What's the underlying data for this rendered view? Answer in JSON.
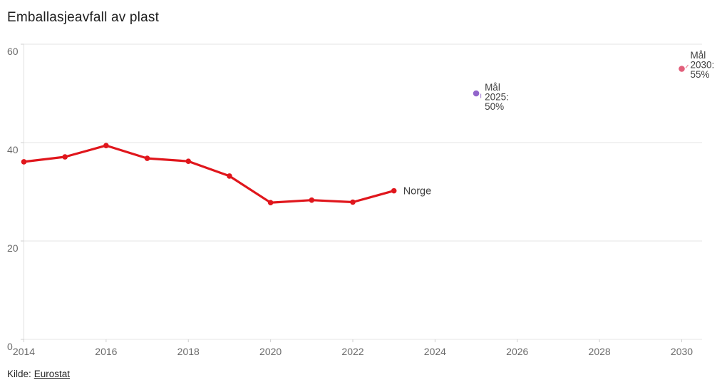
{
  "title": "Emballasjeavfall av plast",
  "source": {
    "prefix": "Kilde:",
    "link": "Eurostat"
  },
  "colors": {
    "line": "#e0161c",
    "target_2025": "#9265cb",
    "target_2030": "#e25f7b",
    "grid": "#e5e5e5",
    "axis": "#e0e0e0",
    "tick": "#cfcfcf",
    "axis_text": "#6b6b6b",
    "annotation_text": "#3f3f3f"
  },
  "chart_data": {
    "type": "line",
    "title": "Emballasjeavfall av plast",
    "unit": "%",
    "x": [
      2014,
      2015,
      2016,
      2017,
      2018,
      2019,
      2020,
      2021,
      2022,
      2023
    ],
    "series": [
      {
        "name": "Norge",
        "color": "#e0161c",
        "values": [
          36.1,
          37.1,
          39.4,
          36.8,
          36.2,
          33.2,
          27.8,
          28.3,
          27.9,
          30.2
        ]
      }
    ],
    "targets": [
      {
        "name": "maal-2025",
        "label_lines": [
          "Mål",
          "2025:",
          "50%"
        ],
        "year": 2025,
        "value": 50,
        "color": "#9265cb"
      },
      {
        "name": "maal-2030",
        "label_lines": [
          "Mål",
          "2030:",
          "55%"
        ],
        "year": 2030,
        "value": 55,
        "color": "#e25f7b"
      }
    ],
    "end_label": "Norge",
    "ylim": [
      0,
      60
    ],
    "yticks": [
      0,
      20,
      40,
      60
    ],
    "xticks": [
      2014,
      2016,
      2018,
      2020,
      2022,
      2024,
      2026,
      2028,
      2030
    ],
    "grid": true,
    "legend_position": "end-of-line"
  }
}
